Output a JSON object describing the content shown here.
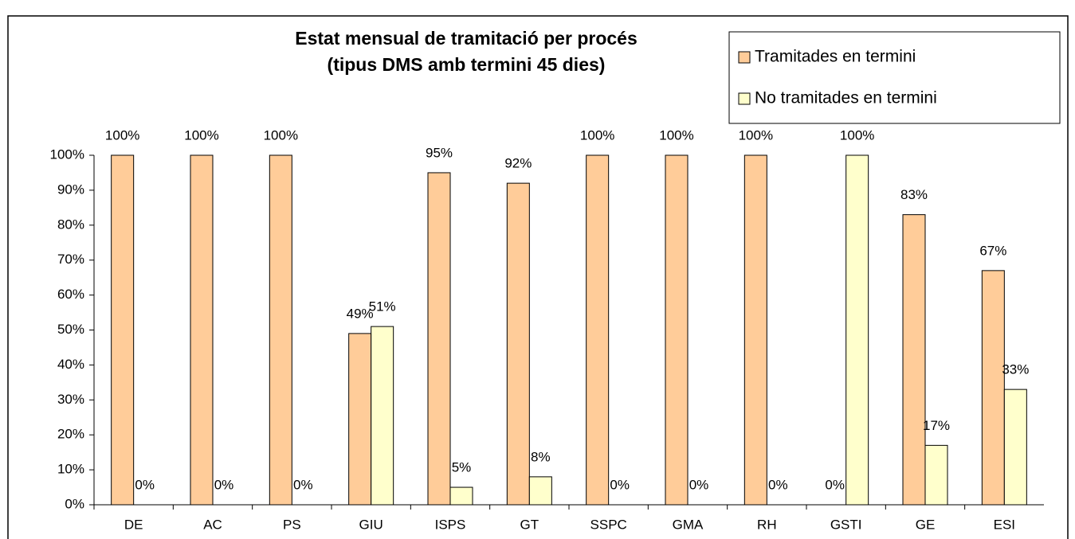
{
  "chart_data": {
    "type": "bar",
    "title": "Estat mensual de tramitació per procés",
    "subtitle": "(tipus DMS amb termini 45 dies)",
    "categories": [
      "DE",
      "AC",
      "PS",
      "GIU",
      "ISPS",
      "GT",
      "SSPC",
      "GMA",
      "RH",
      "GSTI",
      "GE",
      "ESI"
    ],
    "series": [
      {
        "name": "Tramitades en termini",
        "color": "#FFCC99",
        "values": [
          100,
          100,
          100,
          49,
          95,
          92,
          100,
          100,
          100,
          0,
          83,
          67
        ],
        "value_labels": [
          "100%",
          "100%",
          "100%",
          "49%",
          "95%",
          "92%",
          "100%",
          "100%",
          "100%",
          "0%",
          "83%",
          "67%"
        ]
      },
      {
        "name": "No tramitades en termini",
        "color": "#FFFFCC",
        "values": [
          0,
          0,
          0,
          51,
          5,
          8,
          0,
          0,
          0,
          100,
          17,
          33
        ],
        "value_labels": [
          "0%",
          "0%",
          "0%",
          "51%",
          "5%",
          "8%",
          "0%",
          "0%",
          "0%",
          "100%",
          "17%",
          "33%"
        ]
      }
    ],
    "ylim": [
      0,
      100
    ],
    "yticks": [
      {
        "value": 0,
        "label": "0%"
      },
      {
        "value": 10,
        "label": "10%"
      },
      {
        "value": 20,
        "label": "20%"
      },
      {
        "value": 30,
        "label": "30%"
      },
      {
        "value": 40,
        "label": "40%"
      },
      {
        "value": 50,
        "label": "50%"
      },
      {
        "value": 60,
        "label": "60%"
      },
      {
        "value": 70,
        "label": "70%"
      },
      {
        "value": 80,
        "label": "80%"
      },
      {
        "value": 90,
        "label": "90%"
      },
      {
        "value": 100,
        "label": "100%"
      }
    ],
    "legend": "top-right",
    "grid": false
  }
}
